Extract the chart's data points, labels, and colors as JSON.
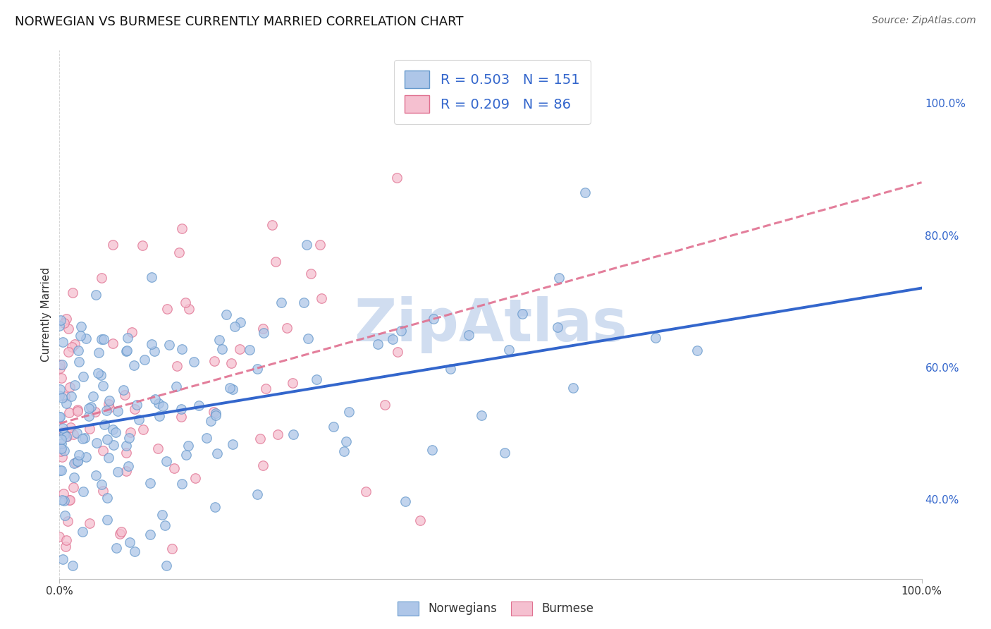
{
  "title": "NORWEGIAN VS BURMESE CURRENTLY MARRIED CORRELATION CHART",
  "source": "Source: ZipAtlas.com",
  "ylabel": "Currently Married",
  "norwegian_R": 0.503,
  "norwegian_N": 151,
  "burmese_R": 0.209,
  "burmese_N": 86,
  "norwegian_color": "#aec6e8",
  "norwegian_edge_color": "#6699cc",
  "burmese_color": "#f5c0d0",
  "burmese_edge_color": "#e07090",
  "norwegian_line_color": "#3366cc",
  "burmese_line_color": "#e07090",
  "background_color": "#ffffff",
  "grid_color": "#cccccc",
  "title_fontsize": 13,
  "legend_r_color": "#3366cc",
  "watermark_text": "ZipAtlas",
  "watermark_color": "#d0ddf0",
  "xlim": [
    0.0,
    1.0
  ],
  "ylim_low": 0.28,
  "ylim_high": 1.08,
  "ytick_labels": [
    "40.0%",
    "60.0%",
    "80.0%",
    "100.0%"
  ],
  "ytick_values": [
    0.4,
    0.6,
    0.8,
    1.0
  ],
  "norw_line_x0": 0.0,
  "norw_line_y0": 0.505,
  "norw_line_x1": 1.0,
  "norw_line_y1": 0.72,
  "bur_line_x0": 0.0,
  "bur_line_y0": 0.515,
  "bur_line_x1": 1.0,
  "bur_line_y1": 0.88
}
